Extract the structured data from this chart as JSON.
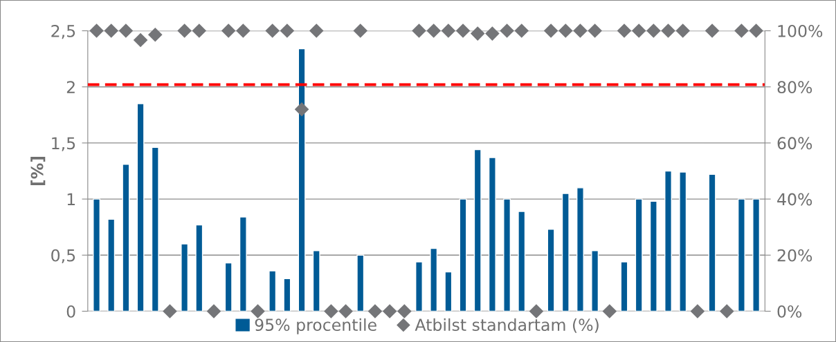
{
  "chart_data": {
    "type": "bar",
    "ylabel": "[%]",
    "categories": [
      null,
      null,
      null,
      null,
      null,
      null,
      null,
      null,
      null,
      null,
      null,
      null,
      null,
      null,
      null,
      null,
      null,
      null,
      null,
      null,
      null,
      null,
      null,
      null,
      null,
      null,
      null,
      null,
      null,
      null,
      null,
      null,
      null,
      null,
      null,
      null,
      null,
      null,
      null,
      null,
      null,
      null,
      null,
      null,
      null,
      null
    ],
    "series": [
      {
        "name": "95% procentile",
        "color": "#005b96",
        "values": [
          1.0,
          0.82,
          1.31,
          1.85,
          1.46,
          null,
          0.6,
          0.77,
          null,
          0.43,
          0.84,
          null,
          0.36,
          0.29,
          2.34,
          0.54,
          null,
          null,
          0.5,
          null,
          null,
          null,
          0.44,
          0.56,
          0.35,
          1.0,
          1.44,
          1.37,
          1.0,
          0.89,
          null,
          0.73,
          1.05,
          1.1,
          0.54,
          null,
          0.44,
          1.0,
          0.98,
          1.25,
          1.24,
          null,
          1.22,
          null,
          1.0,
          1.0
        ]
      },
      {
        "name": "Atbilst standartam (%)",
        "type": "scatter",
        "axis": "y2",
        "marker": "diamond",
        "color": "#747578",
        "values": [
          100,
          100,
          100,
          96.7,
          98.6,
          0,
          100,
          100,
          0,
          100,
          100,
          0,
          100,
          100,
          72,
          100,
          0,
          0,
          100,
          0,
          0,
          0,
          100,
          100,
          100,
          100,
          99,
          99,
          100,
          100,
          0,
          100,
          100,
          100,
          100,
          0,
          100,
          100,
          100,
          100,
          100,
          0,
          100,
          0,
          100,
          100
        ]
      }
    ],
    "ylim": [
      0,
      2.5
    ],
    "yticks": [
      0,
      {
        "value": 0.5,
        "label": "0,5"
      },
      1,
      {
        "value": 1.5,
        "label": "1,5"
      },
      2,
      {
        "value": 2.5,
        "label": "2,5"
      }
    ],
    "y2lim": [
      0,
      100
    ],
    "y2ticks": [
      {
        "value": 0,
        "label": "0%"
      },
      {
        "value": 20,
        "label": "20%"
      },
      {
        "value": 40,
        "label": "40%"
      },
      {
        "value": 60,
        "label": "60%"
      },
      {
        "value": 80,
        "label": "80%"
      },
      {
        "value": 100,
        "label": "100%"
      }
    ],
    "ref_lines": [
      {
        "axis": "y",
        "value": 2.02,
        "color": "#ff0000",
        "line_style": "dashed"
      }
    ],
    "grid": "y",
    "legend": "bottom"
  }
}
